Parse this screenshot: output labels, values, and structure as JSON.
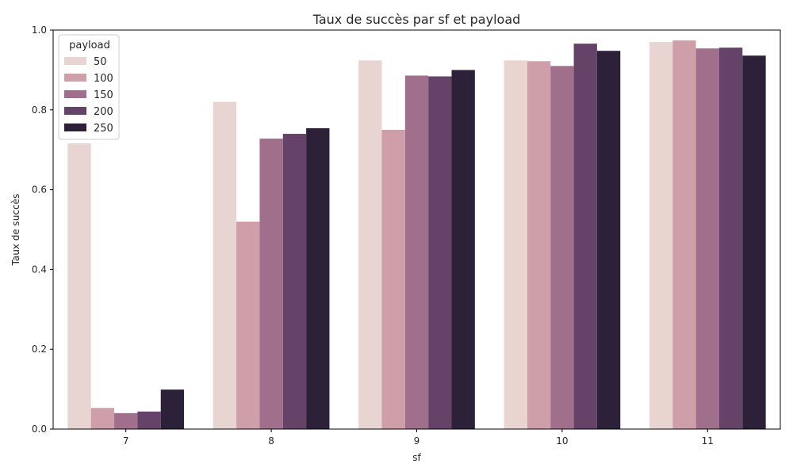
{
  "chart_data": {
    "type": "bar",
    "title": "Taux de succès par sf et payload",
    "xlabel": "sf",
    "ylabel": "Taux de succès",
    "categories": [
      "7",
      "8",
      "9",
      "10",
      "11"
    ],
    "ylim": [
      0,
      1.0
    ],
    "yticks": [
      "0.0",
      "0.2",
      "0.4",
      "0.6",
      "0.8",
      "1.0"
    ],
    "grid": false,
    "legend": {
      "title": "payload",
      "position": "top-left"
    },
    "series": [
      {
        "name": "50",
        "color": "#e8d4d1",
        "values": [
          0.716,
          0.82,
          0.924,
          0.924,
          0.97
        ]
      },
      {
        "name": "100",
        "color": "#cf9fa9",
        "values": [
          0.053,
          0.52,
          0.75,
          0.922,
          0.974
        ]
      },
      {
        "name": "150",
        "color": "#a06f8c",
        "values": [
          0.04,
          0.728,
          0.886,
          0.91,
          0.954
        ]
      },
      {
        "name": "200",
        "color": "#654369",
        "values": [
          0.044,
          0.74,
          0.884,
          0.966,
          0.956
        ]
      },
      {
        "name": "250",
        "color": "#2c2139",
        "values": [
          0.099,
          0.754,
          0.9,
          0.948,
          0.936
        ]
      }
    ]
  }
}
